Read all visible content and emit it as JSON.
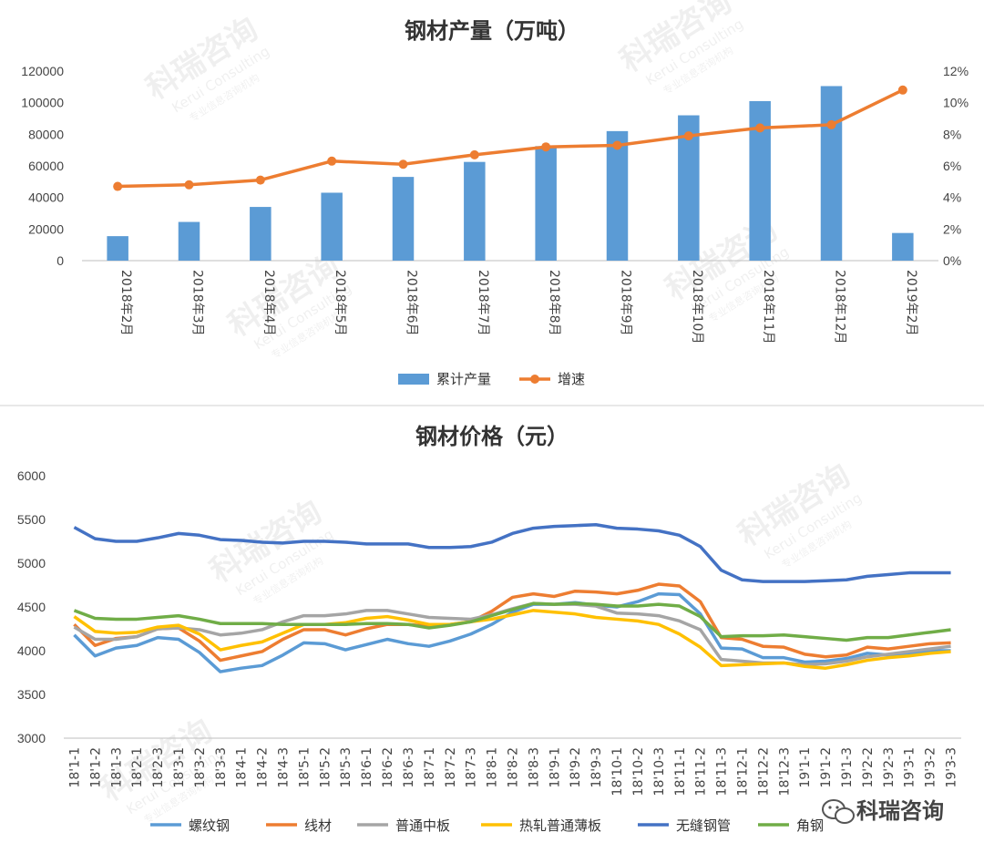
{
  "watermark": {
    "text_cn": "科瑞咨询",
    "text_en": "Kerui Consulting",
    "text_sub": "专业信息咨询机构"
  },
  "brand": {
    "label": "科瑞咨询",
    "icon": "wechat-icon"
  },
  "chart_data": [
    {
      "type": "bar",
      "title": "钢材产量（万吨）",
      "categories": [
        "2018年2月",
        "2018年3月",
        "2018年4月",
        "2018年5月",
        "2018年6月",
        "2018年7月",
        "2018年8月",
        "2018年9月",
        "2018年10月",
        "2018年11月",
        "2018年12月",
        "2019年2月"
      ],
      "series": [
        {
          "name": "累计产量",
          "kind": "bar",
          "axis": "left",
          "color": "#5b9bd5",
          "values": [
            15500,
            24500,
            34000,
            43000,
            53000,
            62500,
            72500,
            82000,
            92000,
            101000,
            110500,
            17500
          ]
        },
        {
          "name": "增速",
          "kind": "line",
          "axis": "right",
          "color": "#ed7d31",
          "values": [
            4.7,
            4.8,
            5.1,
            6.3,
            6.1,
            6.7,
            7.2,
            7.3,
            7.9,
            8.4,
            8.6,
            10.8
          ]
        }
      ],
      "ylim": [
        0,
        120000
      ],
      "yticks": [
        "0",
        "20000",
        "40000",
        "60000",
        "80000",
        "100000",
        "120000"
      ],
      "y2lim": [
        0,
        12
      ],
      "y2ticks": [
        "0%",
        "2%",
        "4%",
        "6%",
        "8%",
        "10%",
        "12%"
      ],
      "legend": "bottom"
    },
    {
      "type": "line",
      "title": "钢材价格（元）",
      "categories": [
        "18'1-1",
        "18'1-2",
        "18'1-3",
        "18'2-1",
        "18'2-3",
        "18'3-1",
        "18'3-2",
        "18'3-3",
        "18'4-1",
        "18'4-2",
        "18'4-3",
        "18'5-1",
        "18'5-2",
        "18'5-3",
        "18'6-1",
        "18'6-2",
        "18'6-3",
        "18'7-1",
        "18'7-2",
        "18'7-3",
        "18'8-1",
        "18'8-2",
        "18'8-3",
        "18'9-1",
        "18'9-2",
        "18'9-3",
        "18'10-1",
        "18'10-2",
        "18'10-3",
        "18'11-1",
        "18'11-2",
        "18'11-3",
        "18'12-1",
        "18'12-2",
        "18'12-3",
        "19'1-1",
        "19'1-2",
        "19'1-3",
        "19'2-2",
        "19'2-3",
        "19'3-1",
        "19'3-2",
        "19'3-3"
      ],
      "ylim": [
        3000,
        6000
      ],
      "yticks": [
        "3000",
        "3500",
        "4000",
        "4500",
        "5000",
        "5500",
        "6000"
      ],
      "legend": "bottom",
      "series": [
        {
          "name": "螺纹钢",
          "color": "#5b9bd5",
          "values": [
            4180,
            3940,
            4030,
            4060,
            4150,
            4130,
            3980,
            3760,
            3800,
            3830,
            3950,
            4090,
            4080,
            4010,
            4070,
            4130,
            4080,
            4050,
            4110,
            4190,
            4300,
            4440,
            4530,
            4530,
            4550,
            4520,
            4500,
            4560,
            4650,
            4640,
            4420,
            4030,
            4020,
            3920,
            3920,
            3870,
            3880,
            3910,
            3970,
            3950,
            3970,
            4000,
            4000
          ]
        },
        {
          "name": "线材",
          "color": "#ed7d31",
          "values": [
            4300,
            4060,
            4140,
            4160,
            4250,
            4260,
            4110,
            3890,
            3940,
            3990,
            4130,
            4240,
            4240,
            4180,
            4250,
            4300,
            4300,
            4280,
            4300,
            4330,
            4450,
            4610,
            4650,
            4620,
            4680,
            4670,
            4650,
            4690,
            4760,
            4740,
            4560,
            4150,
            4130,
            4050,
            4040,
            3960,
            3930,
            3950,
            4040,
            4020,
            4050,
            4080,
            4090
          ]
        },
        {
          "name": "普通中板",
          "color": "#a5a5a5",
          "values": [
            4270,
            4130,
            4130,
            4160,
            4250,
            4260,
            4240,
            4180,
            4200,
            4240,
            4330,
            4400,
            4400,
            4420,
            4460,
            4460,
            4420,
            4380,
            4370,
            4360,
            4410,
            4480,
            4540,
            4530,
            4530,
            4510,
            4430,
            4420,
            4400,
            4340,
            4240,
            3900,
            3880,
            3860,
            3860,
            3840,
            3850,
            3880,
            3930,
            3960,
            3990,
            4020,
            4050
          ]
        },
        {
          "name": "热轧普通薄板",
          "color": "#ffc000",
          "values": [
            4390,
            4220,
            4200,
            4210,
            4270,
            4290,
            4190,
            4010,
            4060,
            4100,
            4200,
            4300,
            4300,
            4320,
            4370,
            4390,
            4350,
            4300,
            4300,
            4330,
            4360,
            4410,
            4460,
            4440,
            4420,
            4380,
            4360,
            4340,
            4300,
            4190,
            4040,
            3830,
            3840,
            3850,
            3860,
            3820,
            3800,
            3840,
            3890,
            3920,
            3940,
            3970,
            3990
          ]
        },
        {
          "name": "无缝钢管",
          "color": "#4472c4",
          "values": [
            5410,
            5280,
            5250,
            5250,
            5290,
            5340,
            5320,
            5270,
            5260,
            5240,
            5230,
            5250,
            5250,
            5240,
            5220,
            5220,
            5220,
            5180,
            5180,
            5190,
            5240,
            5340,
            5400,
            5420,
            5430,
            5440,
            5400,
            5390,
            5370,
            5320,
            5190,
            4920,
            4810,
            4790,
            4790,
            4790,
            4800,
            4810,
            4850,
            4870,
            4890,
            4890,
            4890
          ]
        },
        {
          "name": "角钢",
          "color": "#70ad47",
          "values": [
            4460,
            4370,
            4360,
            4360,
            4380,
            4400,
            4360,
            4310,
            4310,
            4310,
            4300,
            4300,
            4300,
            4300,
            4310,
            4310,
            4300,
            4260,
            4290,
            4330,
            4400,
            4470,
            4540,
            4530,
            4540,
            4530,
            4510,
            4510,
            4530,
            4510,
            4390,
            4160,
            4170,
            4170,
            4180,
            4160,
            4140,
            4120,
            4150,
            4150,
            4180,
            4210,
            4240
          ]
        }
      ]
    }
  ]
}
